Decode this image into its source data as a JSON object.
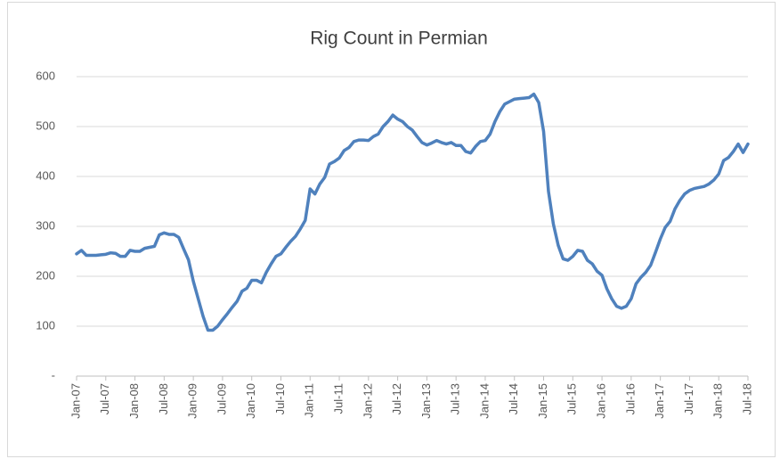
{
  "chart_data": {
    "type": "line",
    "title": "Rig Count in Permian",
    "categories": [
      "Jan-07",
      null,
      null,
      null,
      null,
      null,
      "Jul-07",
      null,
      null,
      null,
      null,
      null,
      "Jan-08",
      null,
      null,
      null,
      null,
      null,
      "Jul-08",
      null,
      null,
      null,
      null,
      null,
      "Jan-09",
      null,
      null,
      null,
      null,
      null,
      "Jul-09",
      null,
      null,
      null,
      null,
      null,
      "Jan-10",
      null,
      null,
      null,
      null,
      null,
      "Jul-10",
      null,
      null,
      null,
      null,
      null,
      "Jan-11",
      null,
      null,
      null,
      null,
      null,
      "Jul-11",
      null,
      null,
      null,
      null,
      null,
      "Jan-12",
      null,
      null,
      null,
      null,
      null,
      "Jul-12",
      null,
      null,
      null,
      null,
      null,
      "Jan-13",
      null,
      null,
      null,
      null,
      null,
      "Jul-13",
      null,
      null,
      null,
      null,
      null,
      "Jan-14",
      null,
      null,
      null,
      null,
      null,
      "Jul-14",
      null,
      null,
      null,
      null,
      null,
      "Jan-15",
      null,
      null,
      null,
      null,
      null,
      "Jul-15",
      null,
      null,
      null,
      null,
      null,
      "Jan-16",
      null,
      null,
      null,
      null,
      null,
      "Jul-16",
      null,
      null,
      null,
      null,
      null,
      "Jan-17",
      null,
      null,
      null,
      null,
      null,
      "Jul-17",
      null,
      null,
      null,
      null,
      null,
      "Jan-18",
      null,
      null,
      null,
      null,
      null,
      "Jul-18"
    ],
    "series": [
      {
        "name": "Rig Count",
        "color": "#4f81bd",
        "values": [
          245,
          252,
          242,
          242,
          242,
          243,
          244,
          247,
          246,
          240,
          240,
          252,
          250,
          250,
          256,
          258,
          260,
          283,
          287,
          284,
          284,
          278,
          255,
          233,
          190,
          155,
          120,
          92,
          92,
          100,
          113,
          125,
          138,
          150,
          170,
          176,
          192,
          192,
          187,
          208,
          225,
          240,
          245,
          258,
          270,
          280,
          295,
          312,
          375,
          365,
          385,
          398,
          425,
          430,
          437,
          452,
          458,
          470,
          473,
          473,
          472,
          480,
          485,
          500,
          510,
          523,
          515,
          510,
          500,
          493,
          480,
          468,
          463,
          467,
          472,
          468,
          465,
          468,
          462,
          462,
          450,
          447,
          460,
          470,
          472,
          485,
          510,
          530,
          545,
          550,
          555,
          556,
          557,
          558,
          565,
          548,
          490,
          370,
          305,
          262,
          235,
          232,
          240,
          252,
          250,
          232,
          225,
          210,
          202,
          175,
          155,
          140,
          136,
          140,
          155,
          185,
          198,
          208,
          222,
          248,
          275,
          298,
          310,
          335,
          352,
          365,
          372,
          376,
          378,
          380,
          385,
          393,
          405,
          432,
          438,
          450,
          465,
          448,
          465
        ]
      }
    ],
    "ylim": [
      0,
      600
    ],
    "yticks": [
      {
        "value": 0,
        "label": "-"
      },
      100,
      200,
      300,
      400,
      500,
      600
    ],
    "grid": true
  }
}
